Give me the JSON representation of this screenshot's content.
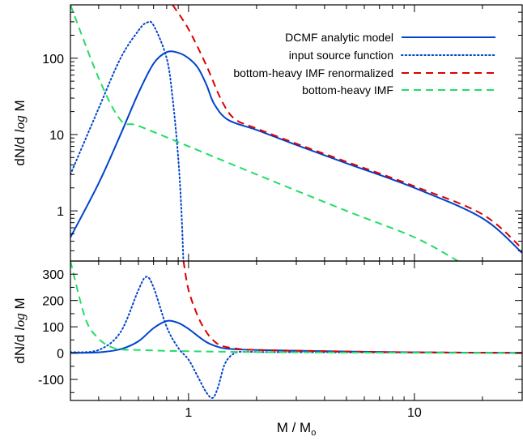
{
  "chart_data": [
    {
      "type": "line",
      "panel": "top",
      "xscale": "log",
      "yscale": "log",
      "xlim": [
        0.3,
        30
      ],
      "ylim": [
        0.22,
        500
      ],
      "ylabel": "dN/d log M",
      "yticks": [
        1,
        10,
        100
      ],
      "ytick_labels": [
        "1",
        "10",
        "100"
      ],
      "legend": "top-right",
      "series": [
        {
          "name": "DCMF analytic model",
          "color": "#0044cc",
          "dash": "solid",
          "x": [
            0.3,
            0.4,
            0.5,
            0.6,
            0.7,
            0.8,
            0.9,
            1.0,
            1.1,
            1.2,
            1.3,
            1.5,
            2,
            3,
            5,
            10,
            20,
            30
          ],
          "y": [
            0.45,
            2.3,
            10,
            35,
            85,
            120,
            118,
            100,
            75,
            45,
            25,
            15.5,
            11.5,
            7.3,
            4.2,
            2.0,
            0.8,
            0.28
          ]
        },
        {
          "name": "input source function",
          "color": "#0044cc",
          "dash": "dotted",
          "x": [
            0.3,
            0.4,
            0.5,
            0.6,
            0.65,
            0.7,
            0.8,
            0.85,
            0.9,
            0.93,
            0.95
          ],
          "y": [
            3,
            22,
            100,
            230,
            290,
            270,
            100,
            30,
            5,
            1,
            0.2
          ]
        },
        {
          "name": "bottom-heavy IMF renormalized",
          "color": "#dd0000",
          "dash": "dashed",
          "x": [
            0.85,
            1.0,
            1.2,
            1.4,
            1.6,
            2,
            3,
            5,
            10,
            20,
            30
          ],
          "y": [
            500,
            240,
            80,
            28,
            16,
            12,
            7.6,
            4.4,
            2.1,
            0.9,
            0.32
          ]
        },
        {
          "name": "bottom-heavy IMF",
          "color": "#22dd66",
          "dash": "dashed",
          "x": [
            0.3,
            0.4,
            0.5,
            0.6,
            1.0,
            2.0,
            5.0,
            10,
            15.6
          ],
          "y": [
            500,
            55,
            15.5,
            13,
            7,
            3,
            1,
            0.45,
            0.22
          ]
        }
      ]
    },
    {
      "type": "line",
      "panel": "bottom",
      "xscale": "log",
      "yscale": "linear",
      "xlim": [
        0.3,
        30
      ],
      "ylim": [
        -180,
        350
      ],
      "xlabel": "M / M",
      "xlabel_sub": "o",
      "ylabel": "dN/d log M",
      "xticks": [
        1,
        10
      ],
      "xtick_labels": [
        "1",
        "10"
      ],
      "yticks": [
        -100,
        0,
        100,
        200,
        300
      ],
      "ytick_labels": [
        "-100",
        "0",
        "100",
        "200",
        "300"
      ],
      "series": [
        {
          "name": "DCMF analytic model",
          "color": "#0044cc",
          "dash": "solid",
          "x": [
            0.3,
            0.4,
            0.5,
            0.6,
            0.7,
            0.8,
            0.9,
            1.0,
            1.2,
            1.4,
            1.6,
            2,
            5,
            10,
            30
          ],
          "y": [
            1,
            3,
            15,
            45,
            95,
            122,
            115,
            92,
            42,
            20,
            15,
            12,
            6,
            3,
            1
          ]
        },
        {
          "name": "input source function",
          "color": "#0044cc",
          "dash": "dotted",
          "x": [
            0.3,
            0.4,
            0.5,
            0.6,
            0.65,
            0.7,
            0.8,
            0.9,
            1.0,
            1.1,
            1.2,
            1.28,
            1.35,
            1.45,
            1.6,
            1.8,
            2.2,
            5,
            30
          ],
          "y": [
            3,
            12,
            80,
            240,
            290,
            250,
            100,
            20,
            -25,
            -90,
            -150,
            -170,
            -130,
            -40,
            0,
            5,
            4,
            3,
            1
          ]
        },
        {
          "name": "bottom-heavy IMF renormalized",
          "color": "#dd0000",
          "dash": "dashed",
          "x": [
            0.95,
            1.0,
            1.1,
            1.2,
            1.3,
            1.4,
            1.6,
            2,
            5,
            10,
            30
          ],
          "y": [
            350,
            240,
            140,
            80,
            45,
            28,
            18,
            12,
            6,
            3,
            1
          ]
        },
        {
          "name": "bottom-heavy IMF",
          "color": "#22dd66",
          "dash": "dashed",
          "x": [
            0.3,
            0.35,
            0.4,
            0.45,
            0.5,
            0.6,
            1.0,
            3.0,
            30
          ],
          "y": [
            350,
            130,
            55,
            25,
            14,
            12,
            7,
            3,
            0.5
          ]
        }
      ]
    }
  ]
}
